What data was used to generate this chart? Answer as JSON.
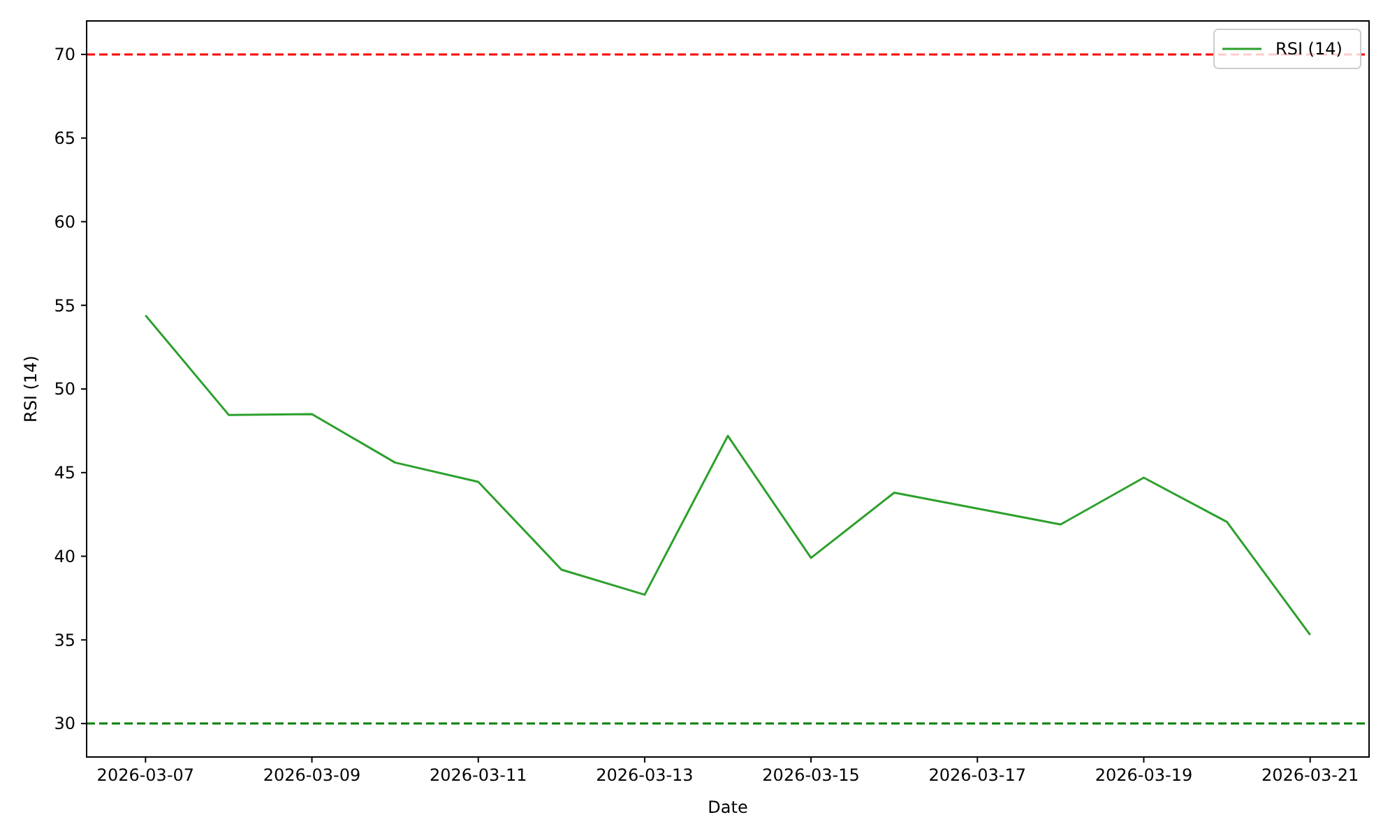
{
  "chart_data": {
    "type": "line",
    "xlabel": "Date",
    "ylabel": "RSI (14)",
    "x": [
      "2026-03-07",
      "2026-03-08",
      "2026-03-09",
      "2026-03-10",
      "2026-03-11",
      "2026-03-12",
      "2026-03-13",
      "2026-03-14",
      "2026-03-15",
      "2026-03-16",
      "2026-03-17",
      "2026-03-18",
      "2026-03-19",
      "2026-03-20",
      "2026-03-21"
    ],
    "series": [
      {
        "name": "RSI (14)",
        "color": "#2ca02c",
        "values": [
          54.4,
          48.45,
          48.5,
          45.6,
          44.45,
          39.2,
          37.7,
          47.2,
          39.9,
          43.8,
          42.85,
          41.9,
          44.7,
          42.05,
          35.3
        ]
      }
    ],
    "xlim": [
      "2026-03-06T07:00",
      "2026-03-21T17:00"
    ],
    "xticks": [
      "2026-03-07",
      "2026-03-09",
      "2026-03-11",
      "2026-03-13",
      "2026-03-15",
      "2026-03-17",
      "2026-03-19",
      "2026-03-21"
    ],
    "ylim": [
      28,
      72
    ],
    "yticks": [
      30,
      35,
      40,
      45,
      50,
      55,
      60,
      65,
      70
    ],
    "ref_lines": [
      {
        "axis": "y",
        "value": 70,
        "color": "#ff0000",
        "line_style": "dashed"
      },
      {
        "axis": "y",
        "value": 30,
        "color": "#008000",
        "line_style": "dashed"
      }
    ],
    "legend": "top right",
    "grid": false,
    "marker": "none",
    "line_style": "solid"
  }
}
